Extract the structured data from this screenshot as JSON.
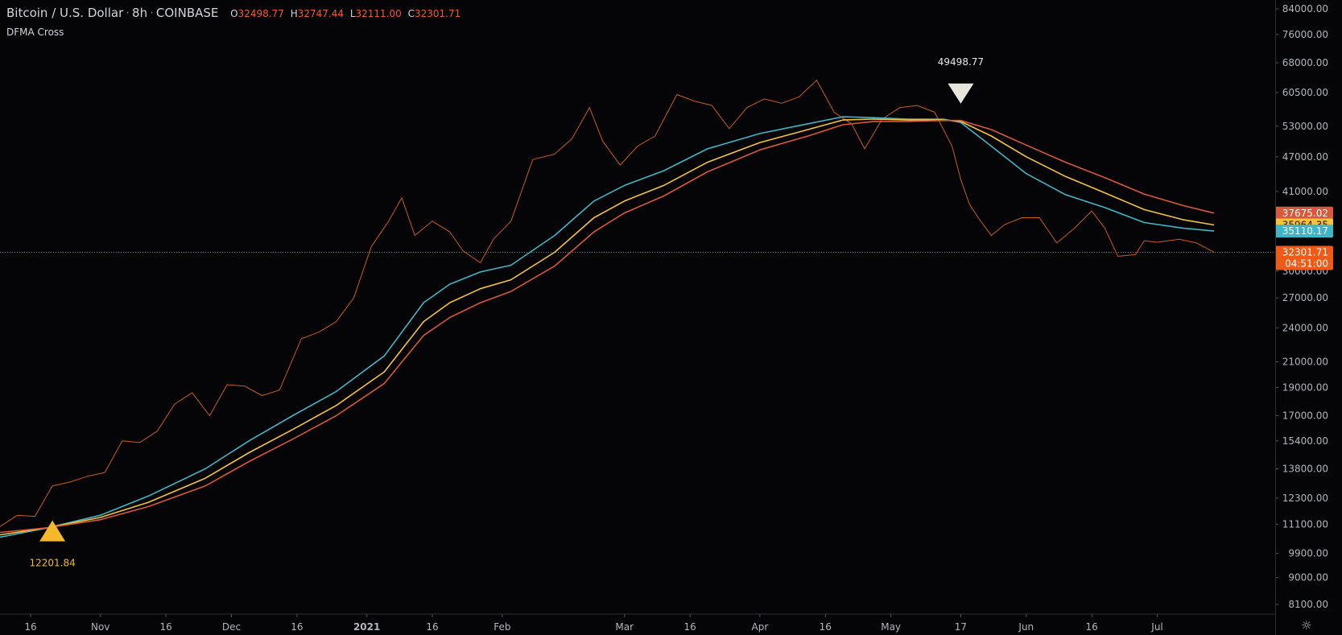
{
  "header": {
    "symbol": "Bitcoin / U.S. Dollar",
    "interval": "8h",
    "exchange": "COINBASE",
    "ohlc": [
      {
        "key": "O",
        "value": "32498.77"
      },
      {
        "key": "H",
        "value": "32747.44"
      },
      {
        "key": "L",
        "value": "32111.00"
      },
      {
        "key": "C",
        "value": "32301.71"
      }
    ],
    "indicator_name": "DFMA Cross"
  },
  "colors": {
    "background": "#050507",
    "price": "#e0661f",
    "ma_fast": "#3fb6c8",
    "ma_mid": "#f5c23a",
    "ma_slow": "#d9573a",
    "last_price": "#ef5a17",
    "buy_signal": "#f5b82a",
    "sell_signal": "#e8e6dc"
  },
  "chart_data": {
    "type": "line",
    "title": "",
    "y_axis": {
      "scale": "log",
      "ylim": [
        7800,
        87000
      ],
      "ticks": [
        "84000.00",
        "76000.00",
        "68000.00",
        "60500.00",
        "53000.00",
        "47000.00",
        "41000.00",
        "32300.00",
        "30000.00",
        "27000.00",
        "24000.00",
        "21000.00",
        "19000.00",
        "17000.00",
        "15400.00",
        "13800.00",
        "12300.00",
        "11100.00",
        "9900.00",
        "9000.00",
        "8100.00"
      ]
    },
    "x_axis": {
      "range": [
        "2020-10-09",
        "2021-07-28"
      ],
      "ticks": [
        {
          "date": "2020-10-16",
          "label": "16",
          "bold": false
        },
        {
          "date": "2020-11-01",
          "label": "Nov",
          "bold": false
        },
        {
          "date": "2020-11-16",
          "label": "16",
          "bold": false
        },
        {
          "date": "2020-12-01",
          "label": "Dec",
          "bold": false
        },
        {
          "date": "2020-12-16",
          "label": "16",
          "bold": false
        },
        {
          "date": "2021-01-01",
          "label": "2021",
          "bold": true
        },
        {
          "date": "2021-01-16",
          "label": "16",
          "bold": false
        },
        {
          "date": "2021-02-01",
          "label": "Feb",
          "bold": false
        },
        {
          "date": "2021-03-01",
          "label": "Mar",
          "bold": false
        },
        {
          "date": "2021-03-16",
          "label": "16",
          "bold": false
        },
        {
          "date": "2021-04-01",
          "label": "Apr",
          "bold": false
        },
        {
          "date": "2021-04-16",
          "label": "16",
          "bold": false
        },
        {
          "date": "2021-05-01",
          "label": "May",
          "bold": false
        },
        {
          "date": "2021-05-17",
          "label": "17",
          "bold": false
        },
        {
          "date": "2021-06-01",
          "label": "Jun",
          "bold": false
        },
        {
          "date": "2021-06-16",
          "label": "16",
          "bold": false
        },
        {
          "date": "2021-07-01",
          "label": "Jul",
          "bold": false
        }
      ]
    },
    "series": [
      {
        "name": "",
        "role": "price",
        "points": [
          [
            "2020-10-09",
            11000
          ],
          [
            "2020-10-13",
            11500
          ],
          [
            "2020-10-17",
            11450
          ],
          [
            "2020-10-21",
            12900
          ],
          [
            "2020-10-25",
            13100
          ],
          [
            "2020-10-29",
            13400
          ],
          [
            "2020-11-02",
            13600
          ],
          [
            "2020-11-06",
            15400
          ],
          [
            "2020-11-10",
            15300
          ],
          [
            "2020-11-14",
            16000
          ],
          [
            "2020-11-18",
            17800
          ],
          [
            "2020-11-22",
            18600
          ],
          [
            "2020-11-26",
            17000
          ],
          [
            "2020-11-30",
            19200
          ],
          [
            "2020-12-04",
            19100
          ],
          [
            "2020-12-08",
            18400
          ],
          [
            "2020-12-12",
            18800
          ],
          [
            "2020-12-17",
            23000
          ],
          [
            "2020-12-21",
            23600
          ],
          [
            "2020-12-25",
            24600
          ],
          [
            "2020-12-29",
            27000
          ],
          [
            "2021-01-02",
            33000
          ],
          [
            "2021-01-06",
            36500
          ],
          [
            "2021-01-09",
            40000
          ],
          [
            "2021-01-12",
            34500
          ],
          [
            "2021-01-16",
            36500
          ],
          [
            "2021-01-20",
            35000
          ],
          [
            "2021-01-23",
            32500
          ],
          [
            "2021-01-27",
            31000
          ],
          [
            "2021-01-30",
            34000
          ],
          [
            "2021-02-03",
            36500
          ],
          [
            "2021-02-08",
            46500
          ],
          [
            "2021-02-13",
            47500
          ],
          [
            "2021-02-17",
            50500
          ],
          [
            "2021-02-21",
            57000
          ],
          [
            "2021-02-24",
            50000
          ],
          [
            "2021-02-28",
            45500
          ],
          [
            "2021-03-04",
            49000
          ],
          [
            "2021-03-08",
            51000
          ],
          [
            "2021-03-13",
            60000
          ],
          [
            "2021-03-17",
            58500
          ],
          [
            "2021-03-21",
            57500
          ],
          [
            "2021-03-25",
            52500
          ],
          [
            "2021-03-29",
            57000
          ],
          [
            "2021-04-02",
            59000
          ],
          [
            "2021-04-06",
            58000
          ],
          [
            "2021-04-10",
            59500
          ],
          [
            "2021-04-14",
            63500
          ],
          [
            "2021-04-18",
            56000
          ],
          [
            "2021-04-22",
            53500
          ],
          [
            "2021-04-25",
            48500
          ],
          [
            "2021-04-29",
            54500
          ],
          [
            "2021-05-03",
            57000
          ],
          [
            "2021-05-07",
            57500
          ],
          [
            "2021-05-11",
            56000
          ],
          [
            "2021-05-15",
            49000
          ],
          [
            "2021-05-17",
            43000
          ],
          [
            "2021-05-19",
            39000
          ],
          [
            "2021-05-21",
            37000
          ],
          [
            "2021-05-24",
            34500
          ],
          [
            "2021-05-27",
            36000
          ],
          [
            "2021-05-31",
            37000
          ],
          [
            "2021-06-04",
            37000
          ],
          [
            "2021-06-08",
            33500
          ],
          [
            "2021-06-12",
            35500
          ],
          [
            "2021-06-16",
            38000
          ],
          [
            "2021-06-19",
            35500
          ],
          [
            "2021-06-22",
            31800
          ],
          [
            "2021-06-26",
            32000
          ],
          [
            "2021-06-28",
            33800
          ],
          [
            "2021-07-01",
            33600
          ],
          [
            "2021-07-06",
            34000
          ],
          [
            "2021-07-10",
            33500
          ],
          [
            "2021-07-14",
            32301.71
          ]
        ]
      },
      {
        "name": "",
        "role": "ma_fast",
        "last_value": "35110.17",
        "points": [
          [
            "2020-10-09",
            10550
          ],
          [
            "2020-10-20",
            10950
          ],
          [
            "2020-11-01",
            11500
          ],
          [
            "2020-11-12",
            12400
          ],
          [
            "2020-11-25",
            13800
          ],
          [
            "2020-12-05",
            15400
          ],
          [
            "2020-12-15",
            17000
          ],
          [
            "2020-12-25",
            18700
          ],
          [
            "2021-01-05",
            21500
          ],
          [
            "2021-01-14",
            26500
          ],
          [
            "2021-01-20",
            28500
          ],
          [
            "2021-01-27",
            29900
          ],
          [
            "2021-02-03",
            30700
          ],
          [
            "2021-02-13",
            34500
          ],
          [
            "2021-02-22",
            39500
          ],
          [
            "2021-03-01",
            42000
          ],
          [
            "2021-03-10",
            44500
          ],
          [
            "2021-03-20",
            48500
          ],
          [
            "2021-04-01",
            51500
          ],
          [
            "2021-04-12",
            53500
          ],
          [
            "2021-04-20",
            55000
          ],
          [
            "2021-04-27",
            54800
          ],
          [
            "2021-05-05",
            54500
          ],
          [
            "2021-05-13",
            54500
          ],
          [
            "2021-05-17",
            53800
          ],
          [
            "2021-05-24",
            49000
          ],
          [
            "2021-06-01",
            44000
          ],
          [
            "2021-06-10",
            40500
          ],
          [
            "2021-06-19",
            38500
          ],
          [
            "2021-06-28",
            36300
          ],
          [
            "2021-07-07",
            35500
          ],
          [
            "2021-07-14",
            35110.17
          ]
        ]
      },
      {
        "name": "",
        "role": "ma_mid",
        "last_value": "35964.35",
        "points": [
          [
            "2020-10-09",
            10650
          ],
          [
            "2020-10-20",
            10950
          ],
          [
            "2020-11-01",
            11400
          ],
          [
            "2020-11-12",
            12100
          ],
          [
            "2020-11-25",
            13300
          ],
          [
            "2020-12-05",
            14700
          ],
          [
            "2020-12-15",
            16100
          ],
          [
            "2020-12-25",
            17700
          ],
          [
            "2021-01-05",
            20200
          ],
          [
            "2021-01-14",
            24600
          ],
          [
            "2021-01-20",
            26500
          ],
          [
            "2021-01-27",
            28000
          ],
          [
            "2021-02-03",
            29000
          ],
          [
            "2021-02-13",
            32300
          ],
          [
            "2021-02-22",
            37000
          ],
          [
            "2021-03-01",
            39500
          ],
          [
            "2021-03-10",
            42000
          ],
          [
            "2021-03-20",
            46000
          ],
          [
            "2021-04-01",
            49700
          ],
          [
            "2021-04-12",
            52300
          ],
          [
            "2021-04-20",
            54300
          ],
          [
            "2021-04-27",
            54500
          ],
          [
            "2021-05-05",
            54300
          ],
          [
            "2021-05-13",
            54300
          ],
          [
            "2021-05-17",
            54000
          ],
          [
            "2021-05-24",
            51000
          ],
          [
            "2021-06-01",
            47000
          ],
          [
            "2021-06-10",
            43500
          ],
          [
            "2021-06-19",
            40800
          ],
          [
            "2021-06-28",
            38200
          ],
          [
            "2021-07-07",
            36700
          ],
          [
            "2021-07-14",
            35964.35
          ]
        ]
      },
      {
        "name": "",
        "role": "ma_slow",
        "last_value": "37675.02",
        "points": [
          [
            "2020-10-09",
            10750
          ],
          [
            "2020-10-20",
            10950
          ],
          [
            "2020-11-01",
            11300
          ],
          [
            "2020-11-12",
            11900
          ],
          [
            "2020-11-25",
            12900
          ],
          [
            "2020-12-05",
            14200
          ],
          [
            "2020-12-15",
            15500
          ],
          [
            "2020-12-25",
            17000
          ],
          [
            "2021-01-05",
            19300
          ],
          [
            "2021-01-14",
            23300
          ],
          [
            "2021-01-20",
            25000
          ],
          [
            "2021-01-27",
            26500
          ],
          [
            "2021-02-03",
            27700
          ],
          [
            "2021-02-13",
            30600
          ],
          [
            "2021-02-22",
            35000
          ],
          [
            "2021-03-01",
            37700
          ],
          [
            "2021-03-10",
            40300
          ],
          [
            "2021-03-20",
            44300
          ],
          [
            "2021-04-01",
            48300
          ],
          [
            "2021-04-12",
            51000
          ],
          [
            "2021-04-20",
            53300
          ],
          [
            "2021-04-27",
            54000
          ],
          [
            "2021-05-05",
            54000
          ],
          [
            "2021-05-13",
            54200
          ],
          [
            "2021-05-17",
            54200
          ],
          [
            "2021-05-24",
            52300
          ],
          [
            "2021-06-01",
            49200
          ],
          [
            "2021-06-10",
            46000
          ],
          [
            "2021-06-19",
            43300
          ],
          [
            "2021-06-28",
            40600
          ],
          [
            "2021-07-07",
            38800
          ],
          [
            "2021-07-14",
            37675.02
          ]
        ]
      }
    ],
    "last_price": {
      "value": "32301.71",
      "countdown": "04:51:00"
    },
    "annotations": [
      {
        "kind": "buy",
        "date": "2020-10-21",
        "value": 10850,
        "label": "12201.84"
      },
      {
        "kind": "sell",
        "date": "2021-05-17",
        "value": 57000,
        "label": "49498.77"
      }
    ]
  }
}
